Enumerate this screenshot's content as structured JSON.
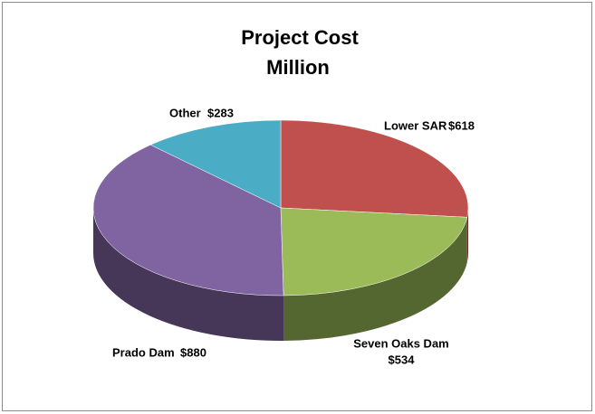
{
  "chart_data": {
    "type": "pie",
    "title": "Project Cost",
    "subtitle": "Million",
    "categories": [
      "Lower SAR",
      "Seven Oaks Dam",
      "Prado Dam",
      "Other"
    ],
    "values": [
      618,
      534,
      880,
      283
    ],
    "value_labels": [
      "$618",
      "$534",
      "$880",
      "$283"
    ],
    "colors": [
      "#c0504d",
      "#9bbb59",
      "#8064a2",
      "#4bacc6"
    ]
  }
}
